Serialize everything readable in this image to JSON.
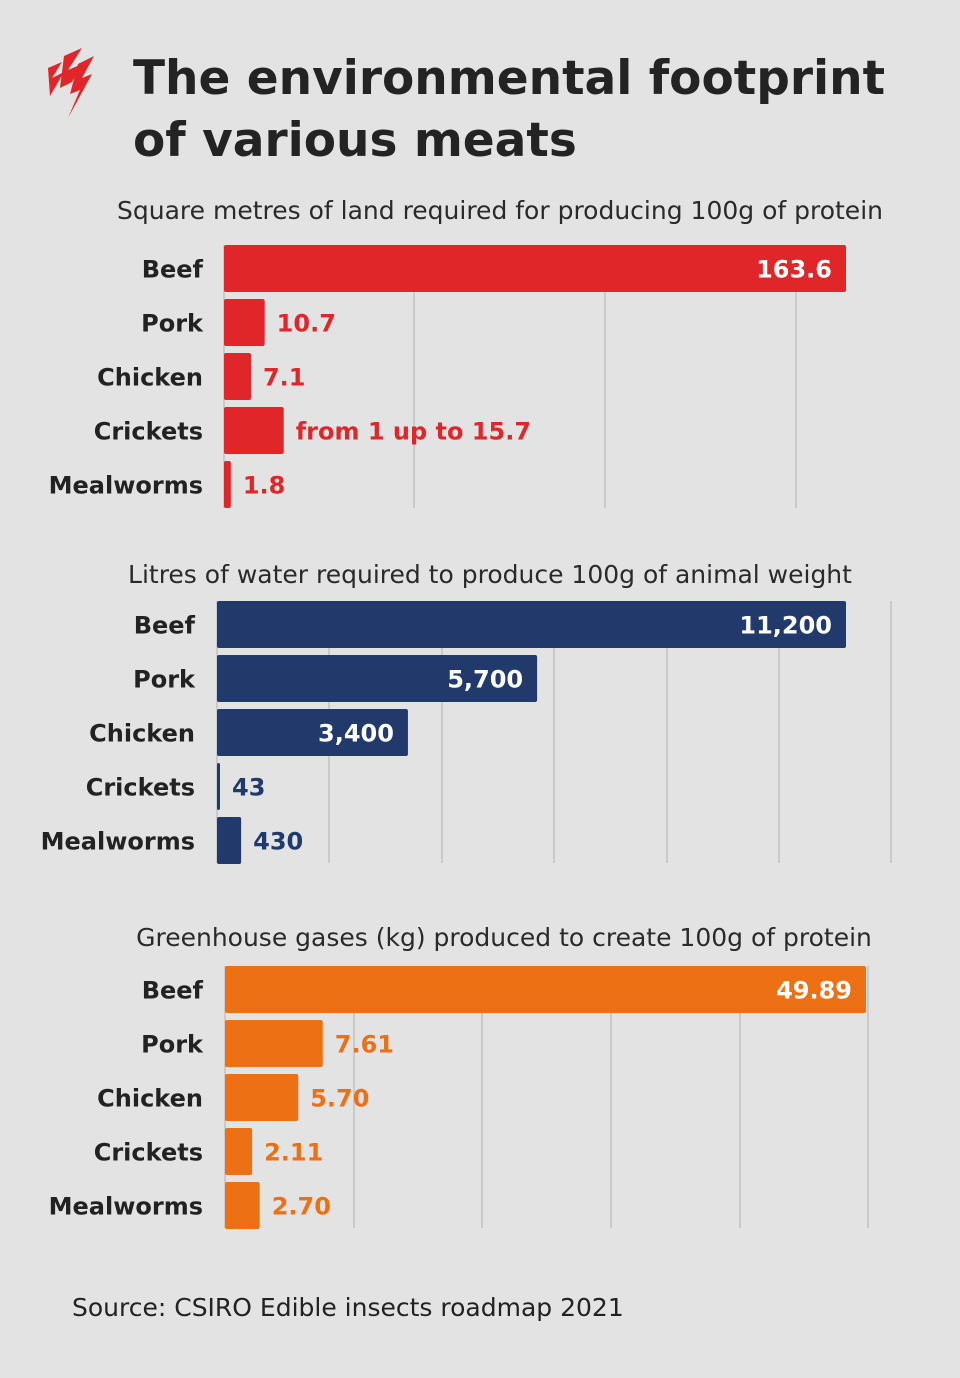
{
  "title": "The environmental footprint of various meats",
  "logo": {
    "icon": "sbs-wave-logo-icon",
    "color": "#e02629"
  },
  "source": "Source: CSIRO Edible insects roadmap 2021",
  "chart_data": [
    {
      "type": "bar",
      "orientation": "horizontal",
      "title": "Square metres of land required for producing 100g of protein",
      "categories": [
        "Beef",
        "Pork",
        "Chicken",
        "Crickets",
        "Mealworms"
      ],
      "values": [
        163.6,
        10.7,
        7.1,
        15.7,
        1.8
      ],
      "value_labels": [
        "163.6",
        "10.7",
        "7.1",
        "from 1 up to 15.7",
        "1.8"
      ],
      "color": "#e02629",
      "grid": true,
      "xlim": [
        0,
        163.6
      ]
    },
    {
      "type": "bar",
      "orientation": "horizontal",
      "title": "Litres of water required to produce 100g of animal weight",
      "categories": [
        "Beef",
        "Pork",
        "Chicken",
        "Crickets",
        "Mealworms"
      ],
      "values": [
        11200,
        5700,
        3400,
        43,
        430
      ],
      "value_labels": [
        "11,200",
        "5,700",
        "3,400",
        "43",
        "430"
      ],
      "color": "#22396b",
      "grid": true,
      "xlim": [
        0,
        11200
      ]
    },
    {
      "type": "bar",
      "orientation": "horizontal",
      "title": "Greenhouse gases (kg) produced to create 100g of protein",
      "categories": [
        "Beef",
        "Pork",
        "Chicken",
        "Crickets",
        "Mealworms"
      ],
      "values": [
        49.89,
        7.61,
        5.7,
        2.11,
        2.7
      ],
      "value_labels": [
        "49.89",
        "7.61",
        "5.70",
        "2.11",
        "2.70"
      ],
      "color": "#ee7014",
      "grid": true,
      "xlim": [
        0,
        49.89
      ]
    }
  ]
}
